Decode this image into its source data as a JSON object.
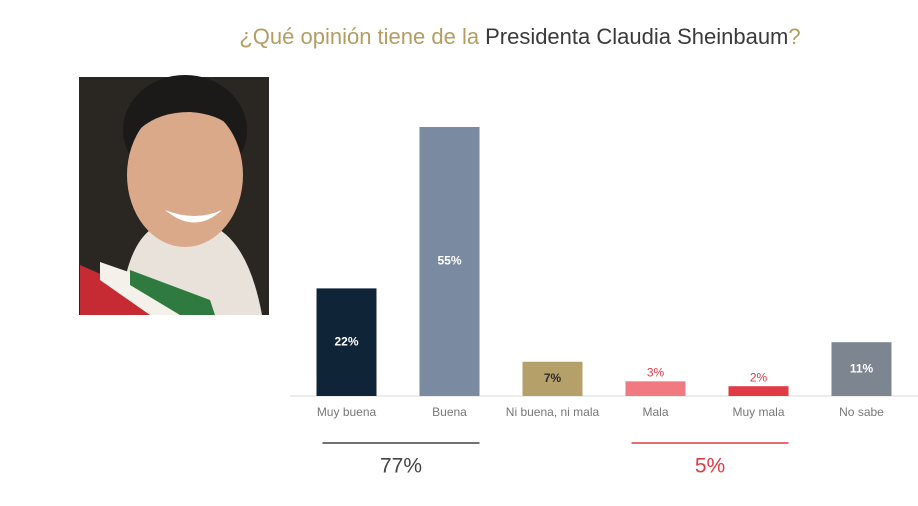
{
  "chart_data": {
    "type": "bar",
    "title": [
      "¿Qué opinión tiene de la",
      "Presidenta Claudia Sheinbaum",
      "?"
    ],
    "title_colors": [
      "#b39d62",
      "#3a3a3a",
      "#b39d62"
    ],
    "categories": [
      "Muy buena",
      "Buena",
      "Ni buena, ni mala",
      "Mala",
      "Muy mala",
      "No sabe"
    ],
    "values": [
      22,
      55,
      7,
      3,
      2,
      11
    ],
    "value_labels": [
      "22%",
      "55%",
      "7%",
      "3%",
      "2%",
      "11%"
    ],
    "colors": [
      "#0f2537",
      "#7a8aa0",
      "#b5a06a",
      "#f07a80",
      "#e03a45",
      "#7d8590"
    ],
    "label_colors": [
      "#ffffff",
      "#ffffff",
      "#2b2b2b",
      "#e03a45",
      "#e03a45",
      "#ffffff"
    ],
    "ylim": [
      0,
      55
    ],
    "groups": [
      {
        "categories": [
          "Muy buena",
          "Buena"
        ],
        "value": 77,
        "value_label": "77%",
        "color": "#444444"
      },
      {
        "categories": [
          "Mala",
          "Muy mala"
        ],
        "value": 5,
        "value_label": "5%",
        "color": "#e03a45"
      }
    ]
  }
}
